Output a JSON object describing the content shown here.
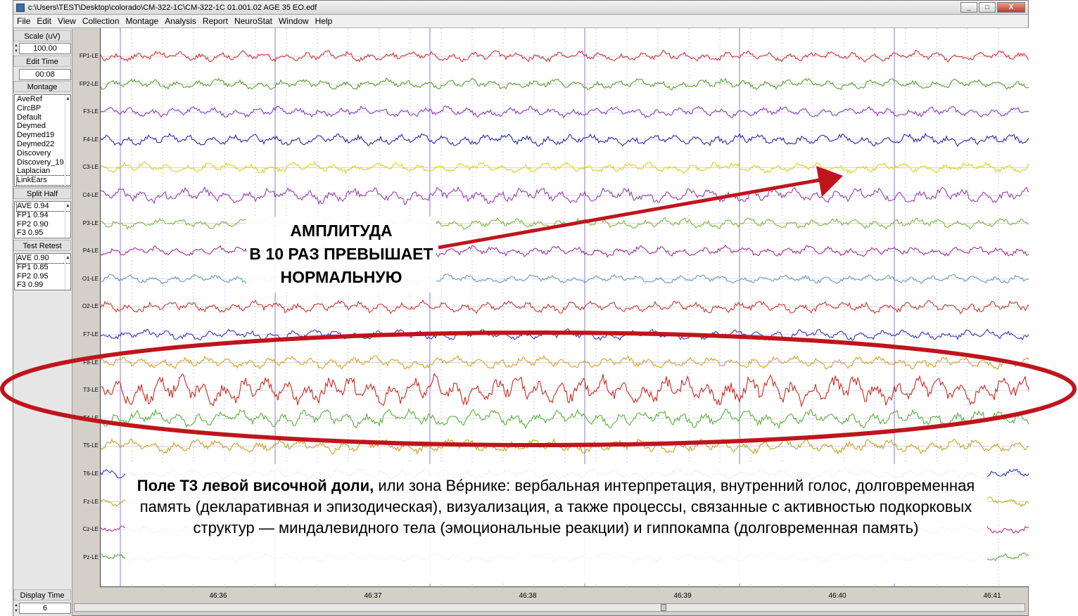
{
  "window": {
    "title": "c:\\Users\\TEST\\Desktop\\colorado\\CM-322-1C\\CM-322-1C 01.001.02 AGE 35  EO.edf",
    "controls": [
      "_",
      "□",
      "X"
    ]
  },
  "menu": [
    "File",
    "Edit",
    "View",
    "Collection",
    "Montage",
    "Analysis",
    "Report",
    "NeuroStat",
    "Window",
    "Help"
  ],
  "left_panel": {
    "scale_label": "Scale (uV)",
    "scale_value": "100.00",
    "edit_time_label": "Edit Time",
    "edit_time_value": "00:08",
    "montage_label": "Montage",
    "montages": [
      "AveRef",
      "CircBP",
      "Default",
      "Deymed",
      "Deymed19",
      "Deymed22",
      "Discovery",
      "Discovery_19",
      "Laplacian",
      "LinkEars"
    ],
    "selected_montage": "LinkEars",
    "split_half_label": "Split Half",
    "split_half": [
      "AVE  0.94",
      "FP1  0.94",
      "FP2  0.90",
      "F3  0.95"
    ],
    "test_retest_label": "Test Retest",
    "test_retest": [
      "AVE  0.90",
      "FP1  0.85",
      "FP2  0.95",
      "F3  0.99"
    ],
    "display_time_label": "Display Time",
    "display_time_value": "6"
  },
  "channels": [
    {
      "name": "FP1-LE",
      "color": "#d0342c",
      "amp": 6
    },
    {
      "name": "FP2-LE",
      "color": "#5aa02c",
      "amp": 6
    },
    {
      "name": "F3-LE",
      "color": "#8a3db0",
      "amp": 6
    },
    {
      "name": "F4-LE",
      "color": "#2a2aa0",
      "amp": 7
    },
    {
      "name": "C3-LE",
      "color": "#d8d21a",
      "amp": 6
    },
    {
      "name": "C4-LE",
      "color": "#9a3fae",
      "amp": 9
    },
    {
      "name": "P3-LE",
      "color": "#78b83a",
      "amp": 6
    },
    {
      "name": "P4-LE",
      "color": "#a0309a",
      "amp": 6
    },
    {
      "name": "O1-LE",
      "color": "#6a9ab0",
      "amp": 5
    },
    {
      "name": "O2-LE",
      "color": "#c8382a",
      "amp": 7
    },
    {
      "name": "F7-LE",
      "color": "#3a3aa8",
      "amp": 6
    },
    {
      "name": "F8-LE",
      "color": "#d4a020",
      "amp": 7
    },
    {
      "name": "T3-LE",
      "color": "#c82a20",
      "amp": 17
    },
    {
      "name": "T4-LE",
      "color": "#5ab03a",
      "amp": 10
    },
    {
      "name": "T5-LE",
      "color": "#c8a020",
      "amp": 8
    },
    {
      "name": "T6-LE",
      "color": "#2a3ab0",
      "amp": 6
    },
    {
      "name": "Fz-LE",
      "color": "#b8b020",
      "amp": 5
    },
    {
      "name": "Cz-LE",
      "color": "#b0309a",
      "amp": 5
    },
    {
      "name": "Pz-LE",
      "color": "#60a83a",
      "amp": 5
    }
  ],
  "time_axis": [
    "46:36",
    "46:37",
    "46:38",
    "46:39",
    "46:40",
    "46:41"
  ],
  "annotations": {
    "amplitude_lines": [
      "АМПЛИТУДА",
      "В 10 РАЗ ПРЕВЫШАЕТ",
      "НОРМАЛЬНУЮ"
    ],
    "t3_bold": "Поле Т3 левой височной доли,",
    "t3_rest": " или зона Вéрнике: вербальная интерпретация, внутренний голос, долговременная память (декларативная и эпизодическая), визуализация, а также процессы, связанные с активностью подкорковых структур — миндалевидного тела (эмоциональные реакции) и гиппокампа (долговременная память)",
    "highlight_color": "#c0141c"
  }
}
